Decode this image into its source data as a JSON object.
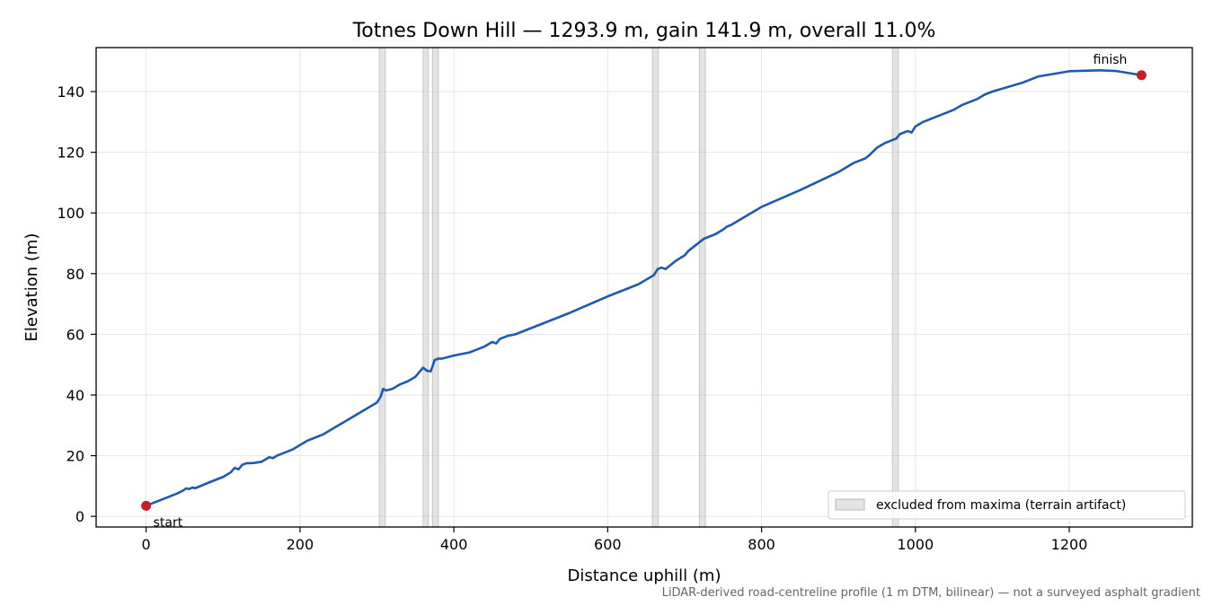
{
  "chart_data": {
    "type": "line",
    "title": "Totnes Down Hill — 1293.9 m, gain 141.9 m, overall 11.0%",
    "xlabel": "Distance uphill (m)",
    "ylabel": "Elevation (m)",
    "xlim": [
      -65,
      1360
    ],
    "ylim": [
      -3.5,
      154.5
    ],
    "xticks": [
      "0",
      "200",
      "400",
      "600",
      "800",
      "1000",
      "1200"
    ],
    "xtick_values": [
      0,
      200,
      400,
      600,
      800,
      1000,
      1200
    ],
    "yticks": [
      "0",
      "20",
      "40",
      "60",
      "80",
      "100",
      "120",
      "140"
    ],
    "ytick_values": [
      0,
      20,
      40,
      60,
      80,
      100,
      120,
      140
    ],
    "grid": true,
    "line_color": "#1f5aad",
    "marker_color": "#c0202a",
    "band_color": "#cccccc",
    "series": [
      {
        "x": [
          0,
          20,
          40,
          48,
          52,
          56,
          60,
          64,
          80,
          100,
          110,
          115,
          120,
          125,
          130,
          140,
          150,
          160,
          165,
          170,
          190,
          210,
          215,
          230,
          250,
          270,
          290,
          300,
          305,
          308,
          312,
          320,
          330,
          335,
          340,
          350,
          355,
          360,
          365,
          370,
          375,
          380,
          385,
          400,
          420,
          430,
          440,
          450,
          455,
          460,
          470,
          480,
          500,
          550,
          600,
          620,
          640,
          650,
          660,
          665,
          670,
          675,
          680,
          690,
          700,
          705,
          710,
          720,
          725,
          730,
          740,
          750,
          755,
          760,
          780,
          800,
          850,
          900,
          910,
          920,
          930,
          935,
          940,
          950,
          960,
          970,
          975,
          980,
          985,
          990,
          995,
          1000,
          1010,
          1020,
          1030,
          1040,
          1050,
          1060,
          1070,
          1080,
          1090,
          1100,
          1120,
          1140,
          1160,
          1200,
          1240,
          1260,
          1280,
          1293.9
        ],
        "y": [
          3.5,
          5.5,
          7.5,
          8.5,
          9.2,
          9.0,
          9.5,
          9.3,
          11,
          13,
          14.5,
          16.0,
          15.5,
          17.0,
          17.5,
          17.6,
          18.0,
          19.5,
          19.2,
          20.0,
          22,
          25,
          25.5,
          27,
          30,
          33,
          36,
          37.5,
          39.5,
          42.0,
          41.5,
          42.0,
          43.5,
          44.0,
          44.5,
          46,
          47.5,
          49.0,
          48.0,
          47.8,
          51.5,
          52.0,
          52.0,
          53,
          54,
          55,
          56,
          57.5,
          57.0,
          58.5,
          59.5,
          60,
          62,
          67,
          72.5,
          74.5,
          76.5,
          78,
          79.5,
          81.5,
          82.0,
          81.5,
          82.5,
          84.5,
          86.0,
          87.5,
          88.5,
          90.5,
          91.5,
          92.0,
          93.0,
          94.5,
          95.5,
          96.0,
          99,
          102,
          107.5,
          113.5,
          115,
          116.5,
          117.5,
          118.0,
          119.0,
          121.5,
          123,
          124.0,
          124.5,
          126.0,
          126.5,
          127.0,
          126.5,
          128.5,
          130.0,
          131.0,
          132.0,
          133.0,
          134.0,
          135.5,
          136.5,
          137.5,
          139.0,
          140.0,
          141.5,
          143.0,
          145.0,
          146.7,
          147.0,
          146.8,
          146.0,
          145.4
        ]
      }
    ],
    "excluded_bands": [
      [
        303,
        311
      ],
      [
        360,
        367
      ],
      [
        372,
        380
      ],
      [
        658,
        666
      ],
      [
        719,
        727
      ],
      [
        970,
        978
      ]
    ],
    "endpoints": [
      {
        "label": "start",
        "x": 0,
        "y": 3.5
      },
      {
        "label": "finish",
        "x": 1293.9,
        "y": 145.4
      }
    ],
    "legend": {
      "position": "lower right",
      "entries": [
        "excluded from maxima (terrain artifact)"
      ]
    },
    "footnote": "LiDAR-derived road-centreline profile (1 m DTM, bilinear) — not a surveyed asphalt gradient"
  }
}
